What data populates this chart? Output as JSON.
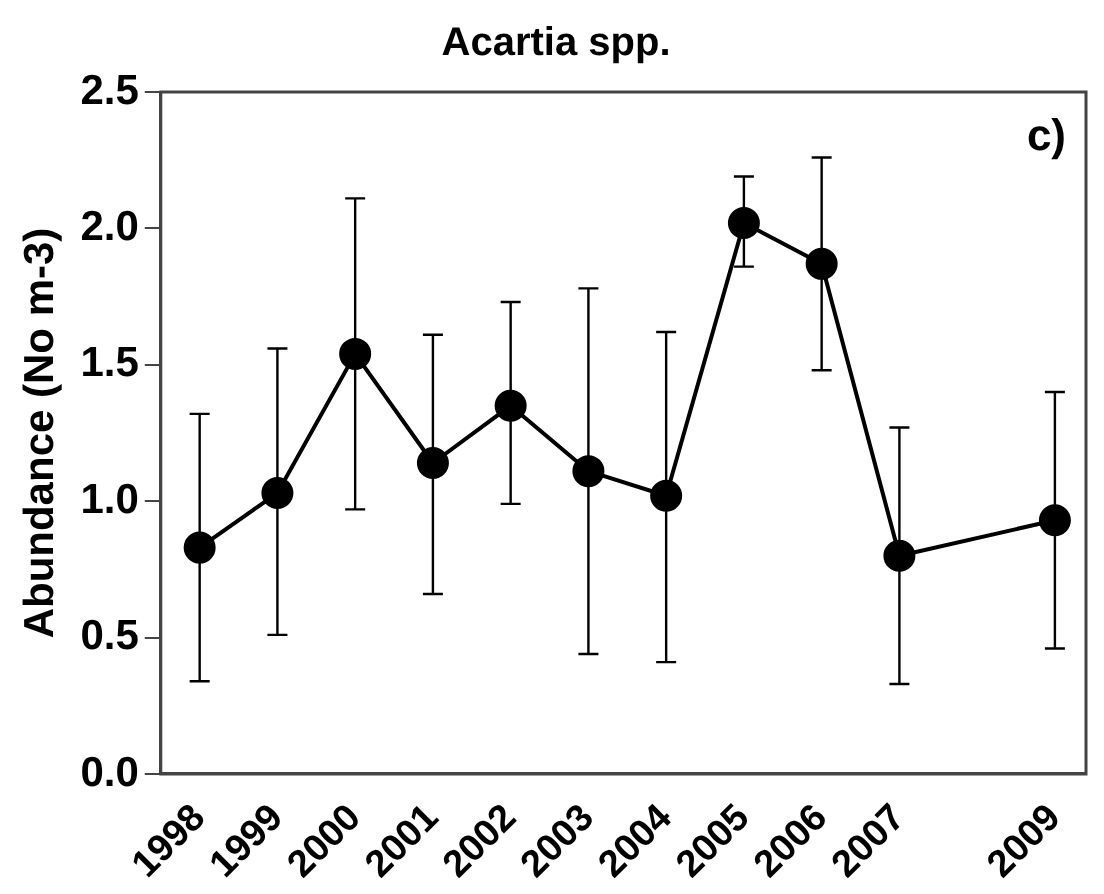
{
  "chart_data": {
    "type": "line",
    "title": "Acartia spp.",
    "ylabel": "Abundance (No m-3)",
    "annotations": [
      "c)"
    ],
    "x": [
      1998,
      1999,
      2000,
      2001,
      2002,
      2003,
      2004,
      2005,
      2006,
      2007,
      2009
    ],
    "series": [
      {
        "color": "#000000",
        "values": [
          0.83,
          1.03,
          1.54,
          1.14,
          1.35,
          1.11,
          1.02,
          2.02,
          1.87,
          0.8,
          0.93
        ],
        "errors": [
          [
            0.34,
            1.32
          ],
          [
            0.51,
            1.56
          ],
          [
            0.97,
            2.11
          ],
          [
            0.66,
            1.61
          ],
          [
            0.99,
            1.73
          ],
          [
            0.44,
            1.78
          ],
          [
            0.41,
            1.62
          ],
          [
            1.86,
            2.19
          ],
          [
            1.48,
            2.26
          ],
          [
            0.33,
            1.27
          ],
          [
            0.46,
            1.4
          ]
        ]
      }
    ],
    "xlim": [
      1997.5,
      2009.4
    ],
    "xticks": [
      1998,
      1999,
      2000,
      2001,
      2002,
      2003,
      2004,
      2005,
      2006,
      2007,
      2009
    ],
    "ylim": [
      0,
      2.5
    ],
    "yticks": [
      {
        "value": 0,
        "label": "0.0"
      },
      0.5,
      {
        "value": 1,
        "label": "1.0"
      },
      1.5,
      {
        "value": 2,
        "label": "2.0"
      },
      2.5
    ],
    "grid": false,
    "legend": false,
    "marker": "circle",
    "line_style": "solid"
  }
}
